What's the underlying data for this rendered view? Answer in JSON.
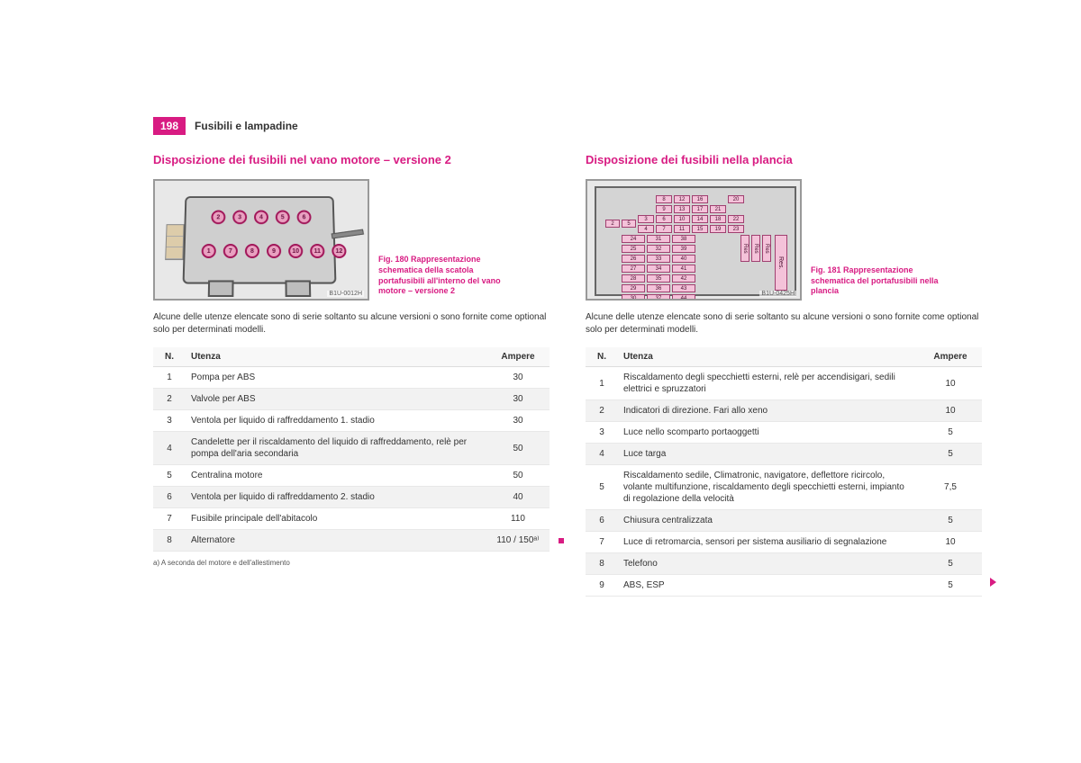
{
  "page": {
    "number": "198",
    "section": "Fusibili e lampadine"
  },
  "left": {
    "title": "Disposizione dei fusibili nel vano motore – versione 2",
    "fig_id": "B1U-0012H",
    "caption": "Fig. 180   Rappresentazione schematica della scatola portafusibili all'interno del vano motore – versione 2",
    "note": "Alcune delle utenze elencate sono di serie soltanto su alcune versioni o sono fornite come optional solo per determinati modelli.",
    "headers": {
      "n": "N.",
      "utenza": "Utenza",
      "amp": "Ampere"
    },
    "rows": [
      {
        "n": "1",
        "utenza": "Pompa per ABS",
        "amp": "30"
      },
      {
        "n": "2",
        "utenza": "Valvole per ABS",
        "amp": "30"
      },
      {
        "n": "3",
        "utenza": "Ventola per liquido di raffreddamento 1. stadio",
        "amp": "30"
      },
      {
        "n": "4",
        "utenza": "Candelette per il riscaldamento del liquido di raffreddamento, relè per pompa dell'aria secondaria",
        "amp": "50"
      },
      {
        "n": "5",
        "utenza": "Centralina motore",
        "amp": "50"
      },
      {
        "n": "6",
        "utenza": "Ventola per liquido di raffreddamento 2. stadio",
        "amp": "40"
      },
      {
        "n": "7",
        "utenza": "Fusibile principale dell'abitacolo",
        "amp": "110"
      },
      {
        "n": "8",
        "utenza": "Alternatore",
        "amp": "110 / 150ᵃ⁾"
      }
    ],
    "footnote": "a)   A seconda del motore e dell'allestimento",
    "engine_circles_top": [
      "2",
      "3",
      "4",
      "5",
      "6"
    ],
    "engine_circles_bot": [
      "1",
      "7",
      "8",
      "9",
      "10",
      "11",
      "12"
    ]
  },
  "right": {
    "title": "Disposizione dei fusibili nella plancia",
    "fig_id": "B1U-0425H",
    "caption": "Fig. 181   Rappresentazione schematica del portafusibili nella plancia",
    "note": "Alcune delle utenze elencate sono di serie soltanto su alcune versioni o sono fornite come optional solo per determinati modelli.",
    "headers": {
      "n": "N.",
      "utenza": "Utenza",
      "amp": "Ampere"
    },
    "rows": [
      {
        "n": "1",
        "utenza": "Riscaldamento degli specchietti esterni, relè per accendisigari, sedili elettrici e spruzzatori",
        "amp": "10"
      },
      {
        "n": "2",
        "utenza": "Indicatori di direzione. Fari allo xeno",
        "amp": "10"
      },
      {
        "n": "3",
        "utenza": "Luce nello scomparto portaoggetti",
        "amp": "5"
      },
      {
        "n": "4",
        "utenza": "Luce targa",
        "amp": "5"
      },
      {
        "n": "5",
        "utenza": "Riscaldamento sedile, Climatronic, navigatore, deflettore ricircolo, volante multifunzione, riscaldamento degli specchietti esterni, impianto di regolazione della velocità",
        "amp": "7,5"
      },
      {
        "n": "6",
        "utenza": "Chiusura centralizzata",
        "amp": "5"
      },
      {
        "n": "7",
        "utenza": "Luce di retromarcia, sensori per sistema ausiliario di segnalazione",
        "amp": "10"
      },
      {
        "n": "8",
        "utenza": "Telefono",
        "amp": "5"
      },
      {
        "n": "9",
        "utenza": "ABS, ESP",
        "amp": "5"
      }
    ],
    "dash_top": [
      "",
      "8",
      "12",
      "16",
      "",
      "20",
      "",
      "9",
      "13",
      "17",
      "21",
      "",
      "3",
      "6",
      "10",
      "14",
      "18",
      "22",
      "4",
      "7",
      "11",
      "15",
      "19",
      "23"
    ],
    "dash_topL": [
      "",
      "",
      "2",
      "5"
    ],
    "dash_bottom": [
      "24",
      "31",
      "38",
      "25",
      "32",
      "39",
      "26",
      "33",
      "40",
      "27",
      "34",
      "41",
      "28",
      "35",
      "42",
      "29",
      "36",
      "43",
      "30",
      "37",
      "44"
    ],
    "res_labels": [
      "Res",
      "Res",
      "Res"
    ],
    "res_big": "Res."
  },
  "colors": {
    "accent": "#d81b82",
    "row_alt": "#f2f2f2",
    "border": "#e8e8e8",
    "fuse_fill": "#f4c2d9",
    "fuse_border": "#a04070"
  }
}
